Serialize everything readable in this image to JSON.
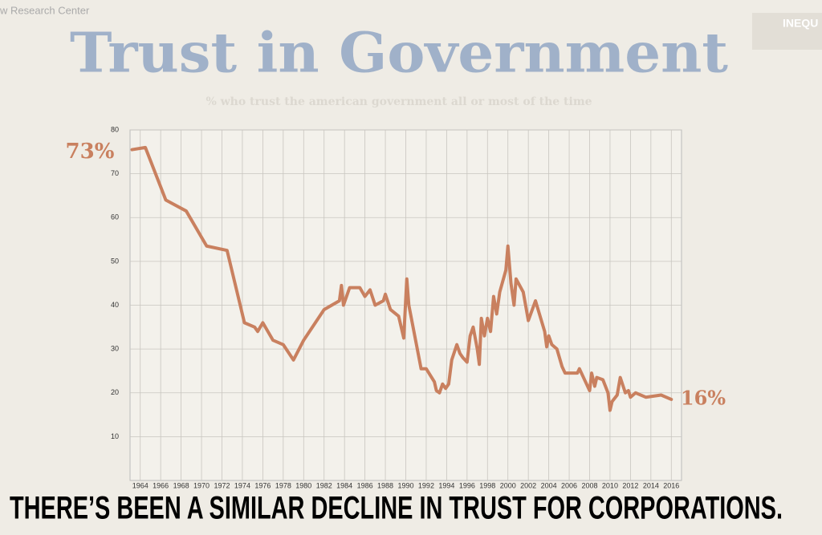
{
  "source": "w Research Center",
  "logo": "INEQU",
  "caption": "THERE’S BEEN A SIMILAR DECLINE IN TRUST FOR CORPORATIONS.",
  "chart_data": {
    "type": "line",
    "title": "Trust in Government",
    "subtitle": "% who trust the american government all or most of the time",
    "annotations": [
      {
        "text": "73%"
      },
      {
        "text": "16%"
      }
    ],
    "x": [
      1963.2,
      1964.5,
      1966.5,
      1968.5,
      1970.5,
      1972.5,
      1974.2,
      1975.2,
      1975.5,
      1976,
      1977,
      1978,
      1979,
      1980,
      1982,
      1983.5,
      1983.7,
      1983.9,
      1984.5,
      1985.5,
      1986,
      1986.5,
      1987,
      1987.8,
      1988,
      1988.5,
      1989.3,
      1989.8,
      1990.1,
      1990.3,
      1991.5,
      1992,
      1992.8,
      1993,
      1993.3,
      1993.6,
      1993.9,
      1994.2,
      1994.5,
      1995,
      1995.3,
      1995.6,
      1996,
      1996.3,
      1996.6,
      1997,
      1997.2,
      1997.4,
      1997.7,
      1998,
      1998.3,
      1998.6,
      1998.9,
      1999.2,
      1999.8,
      2000,
      2000.3,
      2000.6,
      2000.8,
      2001.5,
      2002,
      2002.7,
      2003.6,
      2003.8,
      2004,
      2004.3,
      2004.8,
      2005.3,
      2005.6,
      2006.8,
      2007,
      2007.6,
      2008,
      2008.2,
      2008.5,
      2008.7,
      2009.3,
      2009.8,
      2010,
      2010.2,
      2010.7,
      2011,
      2011.5,
      2011.8,
      2012,
      2012.5,
      2013.5,
      2015,
      2016
    ],
    "series": [
      {
        "name": "Trust",
        "color": "#c9805f",
        "values": [
          75.5,
          76,
          64,
          61.5,
          53.5,
          52.5,
          36,
          35,
          34,
          36,
          32,
          31,
          27.5,
          32,
          39,
          41,
          44.5,
          40,
          44,
          44,
          42,
          43.5,
          40,
          41,
          42.5,
          39,
          37.5,
          32.5,
          46,
          40,
          25.5,
          25.5,
          22.5,
          20.5,
          20,
          22,
          21,
          22,
          27.5,
          31,
          29,
          28,
          27,
          33,
          35,
          30,
          26.5,
          37,
          33,
          37,
          34,
          42,
          38,
          43,
          48,
          53.5,
          45,
          40,
          46,
          43,
          36.5,
          41,
          34,
          30.5,
          33,
          31,
          30,
          26,
          24.5,
          24.5,
          25.5,
          22.5,
          20.5,
          24.5,
          21.5,
          23.5,
          23,
          20,
          16,
          18,
          19.5,
          23.5,
          20,
          20.5,
          19,
          20,
          19,
          19.5,
          18.5
        ]
      }
    ],
    "xlim": [
      1963,
      2017
    ],
    "xticks": [
      1964,
      1966,
      1968,
      1970,
      1972,
      1974,
      1976,
      1978,
      1980,
      1982,
      1984,
      1986,
      1988,
      1990,
      1992,
      1994,
      1996,
      1998,
      2000,
      2002,
      2004,
      2006,
      2008,
      2010,
      2012,
      2014,
      2016
    ],
    "ylim": [
      0,
      80
    ],
    "yticks": [
      10,
      20,
      30,
      40,
      50,
      60,
      70,
      80
    ],
    "grid": true
  }
}
